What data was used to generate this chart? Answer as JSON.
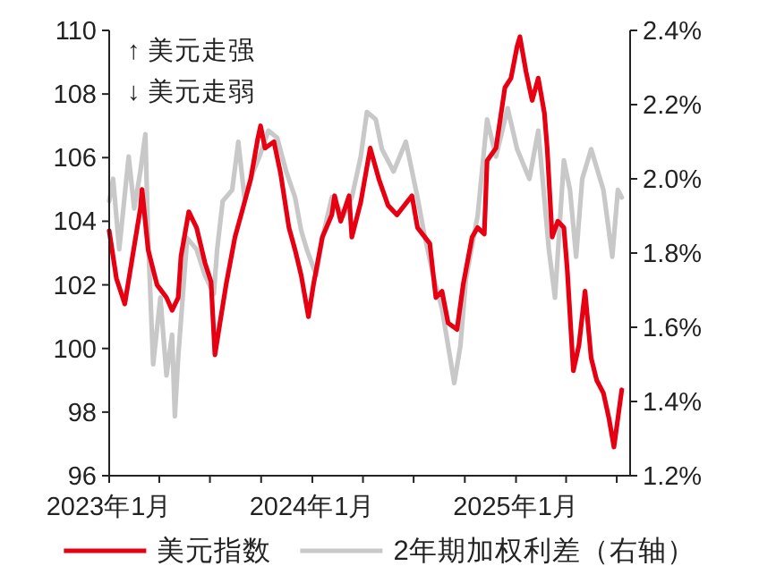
{
  "chart_data": {
    "type": "line",
    "annotations": [
      "↑ 美元走强",
      "↓ 美元走弱"
    ],
    "xlim": [
      "2023-01-01",
      "2025-07-25"
    ],
    "xticks": [
      {
        "value": "2023-01",
        "label": "2023年1月"
      },
      {
        "value": "2023-04",
        "label": null
      },
      {
        "value": "2023-07",
        "label": null
      },
      {
        "value": "2023-10",
        "label": null
      },
      {
        "value": "2024-01",
        "label": "2024年1月"
      },
      {
        "value": "2024-04",
        "label": null
      },
      {
        "value": "2024-07",
        "label": null
      },
      {
        "value": "2024-10",
        "label": null
      },
      {
        "value": "2025-01",
        "label": "2025年1月"
      },
      {
        "value": "2025-04",
        "label": null
      },
      {
        "value": "2025-07",
        "label": null
      }
    ],
    "ylim": [
      96,
      110
    ],
    "yticks": [
      96,
      98,
      100,
      102,
      104,
      106,
      108,
      110
    ],
    "y2lim": [
      1.2,
      2.4
    ],
    "y2ticks": [
      {
        "value": 1.2,
        "label": "1.2%"
      },
      {
        "value": 1.4,
        "label": "1.4%"
      },
      {
        "value": 1.6,
        "label": "1.6%"
      },
      {
        "value": 1.8,
        "label": "1.8%"
      },
      {
        "value": 2.0,
        "label": "2.0%"
      },
      {
        "value": 2.2,
        "label": "2.2%"
      },
      {
        "value": 2.4,
        "label": "2.4%"
      }
    ],
    "legend": "bottom",
    "series": [
      {
        "name": "2年期加权利差（右轴）",
        "color": "#c8c8c8",
        "axis": "y2",
        "x": [
          "2023-01-01",
          "2023-01-08",
          "2023-01-19",
          "2023-02-05",
          "2023-02-15",
          "2023-02-26",
          "2023-03-07",
          "2023-03-12",
          "2023-03-21",
          "2023-04-03",
          "2023-04-14",
          "2023-04-24",
          "2023-04-29",
          "2023-05-05",
          "2023-05-21",
          "2023-06-07",
          "2023-06-22",
          "2023-07-08",
          "2023-07-14",
          "2023-07-24",
          "2023-08-10",
          "2023-08-21",
          "2023-09-01",
          "2023-09-17",
          "2023-09-28",
          "2023-10-14",
          "2023-10-30",
          "2023-11-15",
          "2023-12-01",
          "2023-12-12",
          "2023-12-22",
          "2024-01-08",
          "2024-01-19",
          "2024-02-05",
          "2024-02-26",
          "2024-03-12",
          "2024-03-28",
          "2024-04-08",
          "2024-04-24",
          "2024-05-05",
          "2024-05-26",
          "2024-06-17",
          "2024-07-08",
          "2024-07-19",
          "2024-08-05",
          "2024-08-21",
          "2024-09-01",
          "2024-09-12",
          "2024-09-23",
          "2024-10-03",
          "2024-10-24",
          "2024-11-10",
          "2024-11-26",
          "2024-12-17",
          "2025-01-03",
          "2025-01-25",
          "2025-02-10",
          "2025-03-01",
          "2025-03-12",
          "2025-03-28",
          "2025-04-08",
          "2025-04-19",
          "2025-04-30",
          "2025-05-16",
          "2025-06-07",
          "2025-06-23",
          "2025-07-03",
          "2025-07-10"
        ],
        "values": [
          1.94,
          2.0,
          1.81,
          2.06,
          1.92,
          2.02,
          2.12,
          1.84,
          1.5,
          1.68,
          1.47,
          1.58,
          1.36,
          1.52,
          1.84,
          1.81,
          1.74,
          1.69,
          1.81,
          1.94,
          1.97,
          2.1,
          1.95,
          2.02,
          2.06,
          2.13,
          2.11,
          2.02,
          1.95,
          1.86,
          1.81,
          1.74,
          1.84,
          1.95,
          1.9,
          1.95,
          2.06,
          2.18,
          2.16,
          2.08,
          2.02,
          2.1,
          1.95,
          1.86,
          1.74,
          1.65,
          1.55,
          1.45,
          1.55,
          1.73,
          1.9,
          2.16,
          2.06,
          2.19,
          2.08,
          2.0,
          2.13,
          1.81,
          1.68,
          2.05,
          1.97,
          1.79,
          2.0,
          2.08,
          1.97,
          1.79,
          1.97,
          1.95
        ]
      },
      {
        "name": "美元指数",
        "color": "#e60012",
        "x": [
          "2023-01-01",
          "2023-01-14",
          "2023-01-29",
          "2023-02-26",
          "2023-03-01",
          "2023-03-12",
          "2023-03-28",
          "2023-04-14",
          "2023-04-24",
          "2023-05-05",
          "2023-05-10",
          "2023-05-24",
          "2023-06-07",
          "2023-06-22",
          "2023-07-03",
          "2023-07-10",
          "2023-07-19",
          "2023-07-30",
          "2023-08-15",
          "2023-08-26",
          "2023-09-12",
          "2023-09-25",
          "2023-09-30",
          "2023-10-08",
          "2023-10-24",
          "2023-11-05",
          "2023-11-20",
          "2023-12-01",
          "2023-12-12",
          "2023-12-25",
          "2024-01-03",
          "2024-01-19",
          "2024-02-05",
          "2024-02-10",
          "2024-02-21",
          "2024-03-07",
          "2024-03-12",
          "2024-03-28",
          "2024-04-14",
          "2024-04-30",
          "2024-05-16",
          "2024-06-01",
          "2024-06-28",
          "2024-07-08",
          "2024-07-30",
          "2024-08-10",
          "2024-08-21",
          "2024-09-01",
          "2024-09-17",
          "2024-09-28",
          "2024-10-14",
          "2024-10-24",
          "2024-11-05",
          "2024-11-10",
          "2024-11-26",
          "2024-12-12",
          "2024-12-23",
          "2025-01-03",
          "2025-01-08",
          "2025-01-19",
          "2025-01-30",
          "2025-02-10",
          "2025-02-21",
          "2025-02-26",
          "2025-03-07",
          "2025-03-17",
          "2025-03-28",
          "2025-04-03",
          "2025-04-14",
          "2025-04-24",
          "2025-05-05",
          "2025-05-16",
          "2025-05-26",
          "2025-06-07",
          "2025-06-17",
          "2025-06-26",
          "2025-07-03",
          "2025-07-10"
        ],
        "values": [
          103.7,
          102.2,
          101.4,
          104.4,
          105.0,
          103.1,
          102.0,
          101.6,
          101.2,
          101.6,
          102.9,
          104.3,
          103.8,
          102.7,
          102.1,
          99.8,
          100.8,
          102.0,
          103.5,
          104.2,
          105.3,
          106.6,
          107.0,
          106.3,
          106.5,
          105.5,
          103.8,
          103.1,
          102.3,
          101.0,
          102.0,
          103.5,
          104.2,
          104.8,
          104.0,
          104.8,
          103.5,
          104.6,
          106.3,
          105.3,
          104.5,
          104.2,
          104.8,
          103.8,
          103.3,
          101.6,
          101.8,
          100.8,
          100.6,
          102.0,
          103.5,
          103.8,
          103.6,
          105.9,
          106.3,
          108.2,
          108.5,
          109.5,
          109.8,
          108.7,
          107.8,
          108.5,
          107.4,
          106.3,
          103.5,
          104.0,
          103.8,
          102.5,
          99.3,
          100.1,
          101.8,
          99.7,
          99.0,
          98.6,
          97.8,
          96.9,
          97.8,
          98.7
        ]
      }
    ]
  }
}
